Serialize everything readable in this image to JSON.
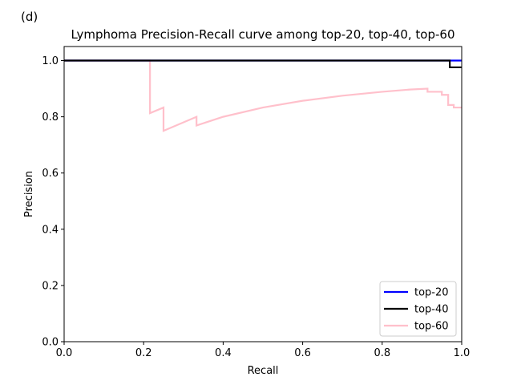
{
  "panel_label": "(d)",
  "chart_data": {
    "type": "line",
    "title": "Lymphoma Precision-Recall curve among top-20, top-40, top-60",
    "xlabel": "Recall",
    "ylabel": "Precision",
    "xlim": [
      0.0,
      1.0
    ],
    "ylim": [
      0.0,
      1.05
    ],
    "xticks": [
      0.0,
      0.2,
      0.4,
      0.6,
      0.8,
      1.0
    ],
    "yticks": [
      0.0,
      0.2,
      0.4,
      0.6,
      0.8,
      1.0
    ],
    "xtick_labels": [
      "0.0",
      "0.2",
      "0.4",
      "0.6",
      "0.8",
      "1.0"
    ],
    "ytick_labels": [
      "0.0",
      "0.2",
      "0.4",
      "0.6",
      "0.8",
      "1.0"
    ],
    "grid": false,
    "legend_position": "lower-right",
    "series": [
      {
        "name": "top-20",
        "color": "#0000ff",
        "points": [
          [
            0.0,
            1.0
          ],
          [
            1.0,
            1.0
          ]
        ]
      },
      {
        "name": "top-40",
        "color": "#000000",
        "points": [
          [
            0.0,
            1.0
          ],
          [
            0.97,
            1.0
          ],
          [
            0.97,
            0.976
          ],
          [
            1.0,
            0.976
          ]
        ]
      },
      {
        "name": "top-60",
        "color": "#ffc0cb",
        "points": [
          [
            0.0,
            1.0
          ],
          [
            0.216,
            1.0
          ],
          [
            0.216,
            0.813
          ],
          [
            0.25,
            0.833
          ],
          [
            0.25,
            0.75
          ],
          [
            0.333,
            0.8
          ],
          [
            0.333,
            0.769
          ],
          [
            0.4,
            0.8
          ],
          [
            0.5,
            0.833
          ],
          [
            0.6,
            0.857
          ],
          [
            0.7,
            0.875
          ],
          [
            0.8,
            0.889
          ],
          [
            0.87,
            0.897
          ],
          [
            0.914,
            0.9
          ],
          [
            0.914,
            0.889
          ],
          [
            0.95,
            0.889
          ],
          [
            0.95,
            0.878
          ],
          [
            0.966,
            0.878
          ],
          [
            0.966,
            0.842
          ],
          [
            0.98,
            0.842
          ],
          [
            0.98,
            0.833
          ],
          [
            1.0,
            0.833
          ]
        ]
      }
    ]
  }
}
